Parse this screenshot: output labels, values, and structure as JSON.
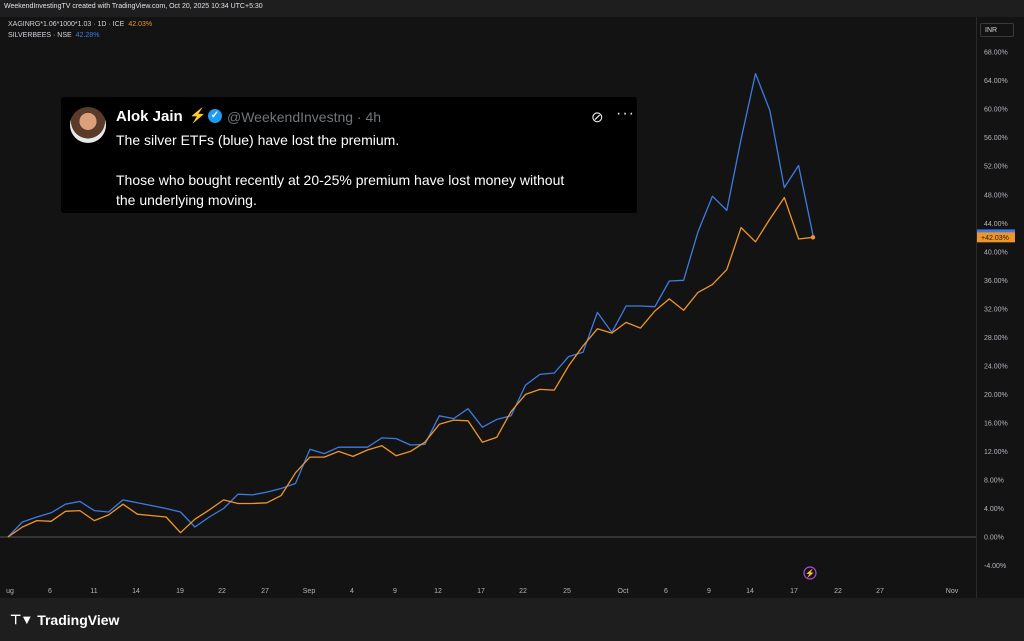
{
  "header": {
    "credit": "WeekendInvestingTV created with TradingView.com, Oct 20, 2025 10:34 UTC+5:30"
  },
  "legend": {
    "line1_symbol": "XAGINRG*1.06*1000*1.03 · 1D · ICE",
    "line1_value": "42.03%",
    "line2_symbol": "SILVERBEES · NSE",
    "line2_value": "42.28%"
  },
  "price_axis": {
    "currency": "INR",
    "last_value_label": "+42.03%"
  },
  "tweet": {
    "name": "Alok Jain",
    "handle": "@WeekendInvestng · 4h",
    "text_line1": "The silver ETFs (blue) have lost the premium.",
    "text_line2": "Those who bought recently at 20-25% premium have lost money without",
    "text_line3": "the underlying moving."
  },
  "branding": {
    "logo_text": "TradingView"
  },
  "colors": {
    "blue_series": "#3d7be0",
    "orange_series": "#f0952a",
    "accent_purple": "#b04be0"
  },
  "chart_data": {
    "type": "line",
    "x_tick_labels": [
      "ug",
      "6",
      "11",
      "14",
      "19",
      "22",
      "27",
      "Sep",
      "4",
      "9",
      "12",
      "17",
      "22",
      "25",
      "Oct",
      "6",
      "9",
      "14",
      "17",
      "22",
      "27",
      "Nov"
    ],
    "y_tick_labels": [
      "68.00%",
      "64.00%",
      "60.00%",
      "56.00%",
      "52.00%",
      "48.00%",
      "44.00%",
      "40.00%",
      "36.00%",
      "32.00%",
      "28.00%",
      "24.00%",
      "20.00%",
      "16.00%",
      "12.00%",
      "8.00%",
      "4.00%",
      "0.00%",
      "-4.00%"
    ],
    "ylim": [
      -5,
      70
    ],
    "series": [
      {
        "name": "SILVERBEES · NSE",
        "color": "#3d7be0",
        "values": [
          0,
          2.1,
          2.8,
          3.4,
          4.6,
          5.0,
          3.7,
          3.5,
          5.2,
          4.8,
          4.4,
          4.0,
          3.5,
          1.4,
          2.8,
          4.0,
          6.0,
          5.9,
          6.3,
          6.8,
          7.5,
          12.3,
          11.7,
          12.6,
          12.6,
          12.6,
          13.9,
          13.8,
          12.9,
          13.0,
          17.0,
          16.6,
          18.0,
          15.4,
          16.5,
          17.0,
          21.3,
          22.8,
          23.0,
          25.3,
          25.9,
          31.5,
          28.7,
          32.4,
          32.4,
          32.3,
          35.9,
          36.0,
          42.8,
          47.8,
          45.8,
          55.8,
          65.0,
          59.8,
          49.0,
          52.1,
          42.3
        ]
      },
      {
        "name": "XAGINRG*1.06*1000*1.03 · 1D · ICE",
        "color": "#f0952a",
        "values": [
          0,
          1.4,
          2.3,
          2.2,
          3.6,
          3.7,
          2.3,
          3.1,
          4.6,
          3.2,
          3.0,
          2.8,
          0.6,
          2.5,
          3.8,
          5.2,
          4.7,
          4.7,
          4.8,
          5.8,
          9.0,
          11.2,
          11.2,
          12.0,
          11.3,
          12.2,
          12.8,
          11.4,
          12.0,
          13.3,
          15.8,
          16.4,
          16.3,
          13.3,
          14.0,
          17.6,
          20.0,
          20.7,
          20.6,
          24.0,
          26.8,
          29.2,
          28.6,
          30.1,
          29.3,
          31.7,
          33.4,
          31.8,
          34.3,
          35.4,
          37.5,
          43.4,
          41.4,
          44.6,
          47.6,
          41.8,
          42.03
        ]
      }
    ],
    "grid": false,
    "legend_position": "top-left"
  }
}
